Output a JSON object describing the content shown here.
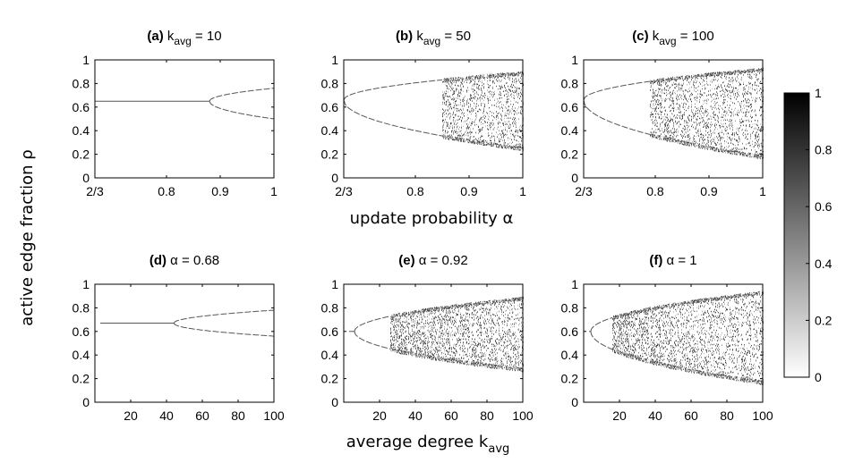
{
  "ylabel": "active edge fraction ρ",
  "xlabel_top": "update probability α",
  "xlabel_bottom_main": "average degree k",
  "xlabel_bottom_sub": "avg",
  "colorbar": {
    "ticks": [
      "0",
      "0.2",
      "0.4",
      "0.6",
      "0.8",
      "1"
    ],
    "range": [
      0,
      1
    ],
    "colors": [
      "#ffffff",
      "#000000"
    ]
  },
  "chart_data": [
    {
      "type": "scatter",
      "panel": "a",
      "tag": "(a)",
      "title_main": "k",
      "title_sub": "avg",
      "title_tail": " = 10",
      "x_range": [
        0.6667,
        1
      ],
      "ylim": [
        0,
        1
      ],
      "xticks": [
        0.6667,
        0.8,
        0.9,
        1
      ],
      "xtick_labels": [
        "2/3",
        "0.8",
        "0.9",
        "1"
      ],
      "yticks": [
        0,
        0.2,
        0.4,
        0.6,
        0.8,
        1
      ],
      "ytick_labels": [
        "0",
        "0.2",
        "0.4",
        "0.6",
        "0.8",
        "1"
      ],
      "bifurcation": {
        "stable_value": 0.65,
        "fork_x": 0.88,
        "upper_end": 0.76,
        "lower_end": 0.5,
        "chaos_start": null
      }
    },
    {
      "type": "scatter",
      "panel": "b",
      "tag": "(b)",
      "title_main": "k",
      "title_sub": "avg",
      "title_tail": " = 50",
      "x_range": [
        0.6667,
        1
      ],
      "ylim": [
        0,
        1
      ],
      "xticks": [
        0.6667,
        0.8,
        0.9,
        1
      ],
      "xtick_labels": [
        "2/3",
        "0.8",
        "0.9",
        "1"
      ],
      "yticks": [
        0,
        0.2,
        0.4,
        0.6,
        0.8,
        1
      ],
      "ytick_labels": [
        "0",
        "0.2",
        "0.4",
        "0.6",
        "0.8",
        "1"
      ],
      "bifurcation": {
        "stable_value": 0.66,
        "fork_x": 0.6667,
        "upper_end": 0.89,
        "lower_end": 0.25,
        "chaos_start": 0.85
      }
    },
    {
      "type": "scatter",
      "panel": "c",
      "tag": "(c)",
      "title_main": "k",
      "title_sub": "avg",
      "title_tail": " = 100",
      "x_range": [
        0.6667,
        1
      ],
      "ylim": [
        0,
        1
      ],
      "xticks": [
        0.6667,
        0.8,
        0.9,
        1
      ],
      "xtick_labels": [
        "2/3",
        "0.8",
        "0.9",
        "1"
      ],
      "yticks": [
        0,
        0.2,
        0.4,
        0.6,
        0.8,
        1
      ],
      "ytick_labels": [
        "0",
        "0.2",
        "0.4",
        "0.6",
        "0.8",
        "1"
      ],
      "bifurcation": {
        "stable_value": 0.66,
        "fork_x": 0.6667,
        "upper_end": 0.92,
        "lower_end": 0.18,
        "chaos_start": 0.79
      }
    },
    {
      "type": "scatter",
      "panel": "d",
      "tag": "(d)",
      "title_main": "α = 0.68",
      "title_sub": "",
      "title_tail": "",
      "x_range": [
        0,
        100
      ],
      "ylim": [
        0,
        1
      ],
      "xticks": [
        20,
        40,
        60,
        80,
        100
      ],
      "xtick_labels": [
        "20",
        "40",
        "60",
        "80",
        "100"
      ],
      "yticks": [
        0,
        0.2,
        0.4,
        0.6,
        0.8,
        1
      ],
      "ytick_labels": [
        "0",
        "0.2",
        "0.4",
        "0.6",
        "0.8",
        "1"
      ],
      "bifurcation": {
        "stable_value": 0.67,
        "fork_x": 44,
        "upper_end": 0.78,
        "lower_end": 0.56,
        "chaos_start": null
      }
    },
    {
      "type": "scatter",
      "panel": "e",
      "tag": "(e)",
      "title_main": "α = 0.92",
      "title_sub": "",
      "title_tail": "",
      "x_range": [
        0,
        100
      ],
      "ylim": [
        0,
        1
      ],
      "xticks": [
        20,
        40,
        60,
        80,
        100
      ],
      "xtick_labels": [
        "20",
        "40",
        "60",
        "80",
        "100"
      ],
      "yticks": [
        0,
        0.2,
        0.4,
        0.6,
        0.8,
        1
      ],
      "ytick_labels": [
        "0",
        "0.2",
        "0.4",
        "0.6",
        "0.8",
        "1"
      ],
      "bifurcation": {
        "stable_value": 0.6,
        "fork_x": 6,
        "upper_end": 0.88,
        "lower_end": 0.28,
        "chaos_start": 26
      }
    },
    {
      "type": "scatter",
      "panel": "f",
      "tag": "(f)",
      "title_main": "α = 1",
      "title_sub": "",
      "title_tail": "",
      "x_range": [
        0,
        100
      ],
      "ylim": [
        0,
        1
      ],
      "xticks": [
        20,
        40,
        60,
        80,
        100
      ],
      "xtick_labels": [
        "20",
        "40",
        "60",
        "80",
        "100"
      ],
      "yticks": [
        0,
        0.2,
        0.4,
        0.6,
        0.8,
        1
      ],
      "ytick_labels": [
        "0",
        "0.2",
        "0.4",
        "0.6",
        "0.8",
        "1"
      ],
      "bifurcation": {
        "stable_value": 0.6,
        "fork_x": 4,
        "upper_end": 0.93,
        "lower_end": 0.17,
        "chaos_start": 16
      }
    }
  ]
}
